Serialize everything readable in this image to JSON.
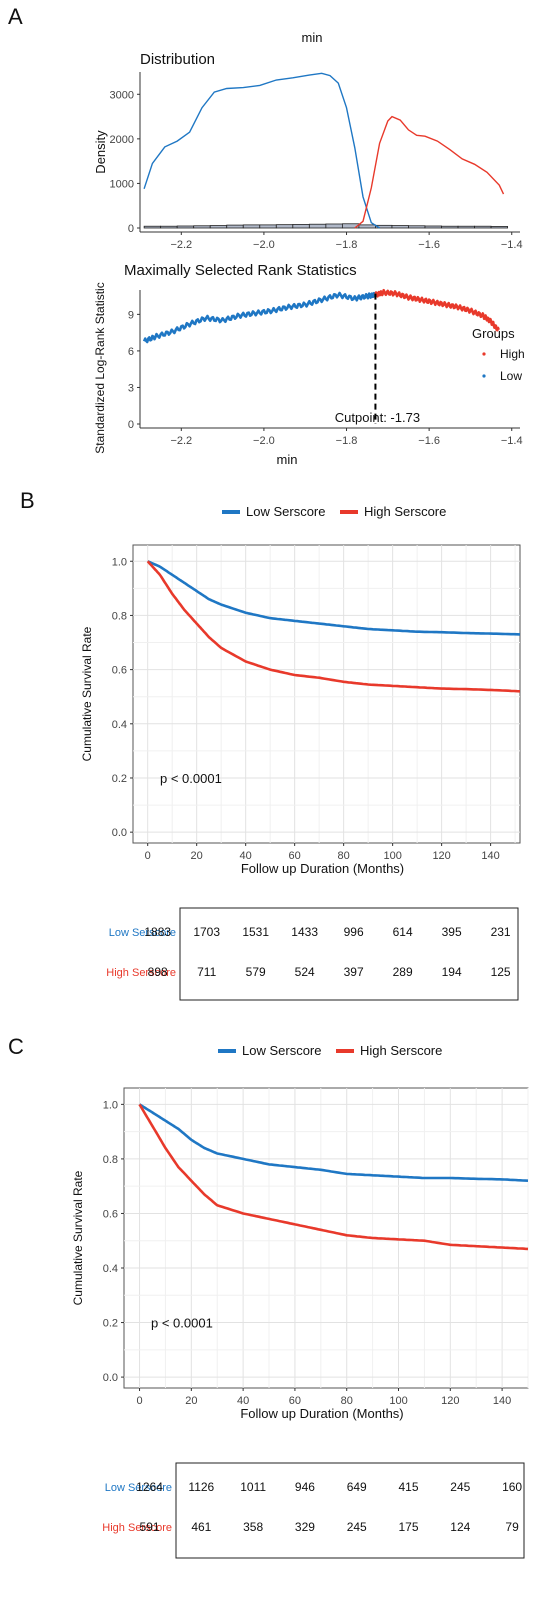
{
  "panels": {
    "a": {
      "label": "A",
      "top_title": "min"
    },
    "b": {
      "label": "B"
    },
    "c": {
      "label": "C"
    }
  },
  "colors": {
    "low": "#1f77c4",
    "high": "#e8392b"
  },
  "chart_data": [
    {
      "id": "a1",
      "type": "line",
      "title": "Distribution",
      "xlabel": "",
      "ylabel": "Density",
      "xlim": [
        -2.3,
        -1.38
      ],
      "ylim": [
        0,
        3500
      ],
      "xticks": [
        -2.2,
        -2.0,
        -1.8,
        -1.6,
        -1.4
      ],
      "yticks": [
        0,
        1000,
        2000,
        3000
      ],
      "series": [
        {
          "name": "Low",
          "color": "#1f77c4",
          "x": [
            -2.29,
            -2.27,
            -2.24,
            -2.21,
            -2.18,
            -2.15,
            -2.12,
            -2.09,
            -2.05,
            -2.01,
            -1.97,
            -1.93,
            -1.89,
            -1.86,
            -1.84,
            -1.82,
            -1.8,
            -1.78,
            -1.76,
            -1.74,
            -1.72
          ],
          "y": [
            880,
            1450,
            1820,
            1950,
            2150,
            2700,
            3050,
            3130,
            3150,
            3200,
            3320,
            3370,
            3430,
            3470,
            3420,
            3250,
            2700,
            1800,
            700,
            120,
            0
          ]
        },
        {
          "name": "High",
          "color": "#e8392b",
          "x": [
            -1.78,
            -1.76,
            -1.74,
            -1.72,
            -1.7,
            -1.69,
            -1.67,
            -1.65,
            -1.63,
            -1.61,
            -1.58,
            -1.55,
            -1.52,
            -1.49,
            -1.46,
            -1.43,
            -1.42
          ],
          "y": [
            0,
            150,
            900,
            1900,
            2400,
            2500,
            2420,
            2200,
            2080,
            2060,
            1950,
            1760,
            1550,
            1430,
            1250,
            960,
            760
          ]
        }
      ],
      "histogram": {
        "x": [
          -2.29,
          -2.25,
          -2.21,
          -2.17,
          -2.13,
          -2.09,
          -2.05,
          -2.01,
          -1.97,
          -1.93,
          -1.89,
          -1.85,
          -1.81,
          -1.77,
          -1.73,
          -1.69,
          -1.65,
          -1.61,
          -1.57,
          -1.53,
          -1.49,
          -1.45
        ],
        "y": [
          40,
          40,
          45,
          50,
          55,
          65,
          70,
          70,
          75,
          80,
          85,
          90,
          95,
          70,
          60,
          55,
          50,
          45,
          40,
          40,
          40,
          35
        ],
        "bin_width": 0.04
      }
    },
    {
      "id": "a2",
      "type": "scatter",
      "title": "Maximally Selected Rank Statistics",
      "xlabel": "min",
      "ylabel": "Standardized Log-Rank Statistic",
      "xlim": [
        -2.3,
        -1.38
      ],
      "ylim": [
        0,
        11
      ],
      "xticks": [
        -2.2,
        -2.0,
        -1.8,
        -1.6,
        -1.4
      ],
      "yticks": [
        0,
        3,
        6,
        9
      ],
      "cutpoint": -1.73,
      "cutpoint_label": "Cutpoint: -1.73",
      "legend_title": "Groups",
      "legend_position": "right",
      "series": [
        {
          "name": "Low",
          "color": "#1f77c4",
          "x": [
            -2.29,
            -2.26,
            -2.22,
            -2.18,
            -2.14,
            -2.1,
            -2.06,
            -2.02,
            -1.98,
            -1.94,
            -1.9,
            -1.86,
            -1.82,
            -1.78,
            -1.75,
            -1.73
          ],
          "y": [
            6.8,
            7.2,
            7.6,
            8.2,
            8.7,
            8.5,
            8.9,
            9.1,
            9.3,
            9.6,
            9.8,
            10.2,
            10.6,
            10.3,
            10.5,
            10.6
          ]
        },
        {
          "name": "High",
          "color": "#e8392b",
          "x": [
            -1.73,
            -1.71,
            -1.68,
            -1.65,
            -1.62,
            -1.59,
            -1.56,
            -1.53,
            -1.5,
            -1.47,
            -1.45,
            -1.43
          ],
          "y": [
            10.6,
            10.8,
            10.7,
            10.4,
            10.2,
            10.0,
            9.8,
            9.6,
            9.3,
            8.9,
            8.4,
            7.6
          ]
        }
      ]
    },
    {
      "id": "b",
      "type": "line",
      "xlabel": "Follow up Duration (Months)",
      "ylabel": "Cumulative Survival Rate",
      "xlim": [
        -6,
        152
      ],
      "ylim": [
        -0.04,
        1.06
      ],
      "xticks": [
        0,
        20,
        40,
        60,
        80,
        100,
        120,
        140
      ],
      "yticks": [
        0.0,
        0.2,
        0.4,
        0.6,
        0.8,
        1.0
      ],
      "annotation": "p < 0.0001",
      "legend_position": "top",
      "series": [
        {
          "name": "Low Serscore",
          "color": "#1f77c4",
          "x": [
            0,
            5,
            10,
            15,
            20,
            25,
            30,
            40,
            50,
            60,
            70,
            80,
            90,
            100,
            110,
            120,
            130,
            140,
            152
          ],
          "y": [
            1.0,
            0.98,
            0.95,
            0.92,
            0.89,
            0.86,
            0.84,
            0.81,
            0.79,
            0.78,
            0.77,
            0.76,
            0.75,
            0.745,
            0.74,
            0.738,
            0.735,
            0.733,
            0.73
          ]
        },
        {
          "name": "High Serscore",
          "color": "#e8392b",
          "x": [
            0,
            5,
            10,
            15,
            20,
            25,
            30,
            40,
            50,
            60,
            70,
            80,
            90,
            100,
            110,
            120,
            130,
            140,
            152
          ],
          "y": [
            1.0,
            0.95,
            0.88,
            0.82,
            0.77,
            0.72,
            0.68,
            0.63,
            0.6,
            0.58,
            0.57,
            0.555,
            0.545,
            0.54,
            0.535,
            0.53,
            0.528,
            0.525,
            0.52
          ]
        }
      ],
      "risk_table": [
        {
          "name": "Low Serscore",
          "values": [
            "1883",
            "1703",
            "1531",
            "1433",
            "996",
            "614",
            "395",
            "231"
          ]
        },
        {
          "name": "High Serscore",
          "values": [
            "898",
            "711",
            "579",
            "524",
            "397",
            "289",
            "194",
            "125"
          ]
        }
      ]
    },
    {
      "id": "c",
      "type": "line",
      "xlabel": "Follow up Duration (Months)",
      "ylabel": "Cumulative Survival Rate",
      "xlim": [
        -6,
        150
      ],
      "ylim": [
        -0.04,
        1.06
      ],
      "xticks": [
        0,
        20,
        40,
        60,
        80,
        100,
        120,
        140
      ],
      "yticks": [
        0.0,
        0.2,
        0.4,
        0.6,
        0.8,
        1.0
      ],
      "annotation": "p < 0.0001",
      "legend_position": "top",
      "series": [
        {
          "name": "Low Serscore",
          "color": "#1f77c4",
          "x": [
            0,
            5,
            10,
            15,
            20,
            25,
            30,
            40,
            50,
            60,
            70,
            80,
            90,
            100,
            110,
            120,
            130,
            140,
            150
          ],
          "y": [
            1.0,
            0.97,
            0.94,
            0.91,
            0.87,
            0.84,
            0.82,
            0.8,
            0.78,
            0.77,
            0.76,
            0.745,
            0.74,
            0.735,
            0.73,
            0.73,
            0.727,
            0.725,
            0.72
          ]
        },
        {
          "name": "High Serscore",
          "color": "#e8392b",
          "x": [
            0,
            5,
            10,
            15,
            20,
            25,
            30,
            40,
            50,
            60,
            70,
            80,
            90,
            100,
            110,
            120,
            130,
            140,
            150
          ],
          "y": [
            1.0,
            0.92,
            0.84,
            0.77,
            0.72,
            0.67,
            0.63,
            0.6,
            0.58,
            0.56,
            0.54,
            0.52,
            0.51,
            0.505,
            0.5,
            0.485,
            0.48,
            0.475,
            0.47
          ]
        }
      ],
      "risk_table": [
        {
          "name": "Low Serscore",
          "values": [
            "1264",
            "1126",
            "1011",
            "946",
            "649",
            "415",
            "245",
            "160"
          ]
        },
        {
          "name": "High Serscore",
          "values": [
            "591",
            "461",
            "358",
            "329",
            "245",
            "175",
            "124",
            "79"
          ]
        }
      ]
    }
  ]
}
